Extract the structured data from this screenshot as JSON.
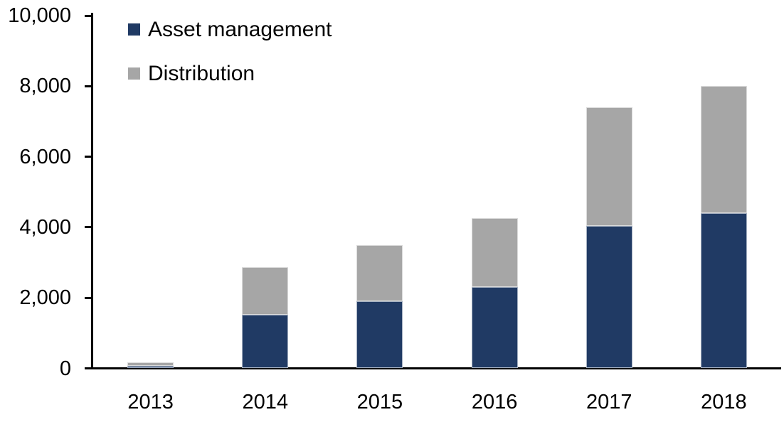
{
  "chart_data": {
    "type": "bar",
    "stacked": true,
    "title": "",
    "xlabel": "",
    "ylabel": "",
    "categories": [
      "2013",
      "2014",
      "2015",
      "2016",
      "2017",
      "2018"
    ],
    "series": [
      {
        "name": "Asset management",
        "color": "#203a64",
        "values": [
          80,
          1530,
          1900,
          2300,
          4030,
          4400
        ]
      },
      {
        "name": "Distribution",
        "color": "#a6a6a6",
        "values": [
          95,
          1340,
          1600,
          1950,
          3370,
          3600
        ]
      }
    ],
    "totals": [
      175,
      2870,
      3500,
      4250,
      7400,
      8000
    ],
    "ylim": [
      0,
      10000
    ],
    "ytick_step": 2000,
    "ytick_labels": [
      "0",
      "2,000",
      "4,000",
      "6,000",
      "8,000",
      "10,000"
    ],
    "grid": false,
    "legend_position": "top-left-inside",
    "axis_color": "#000000",
    "text_color": "#000000"
  }
}
